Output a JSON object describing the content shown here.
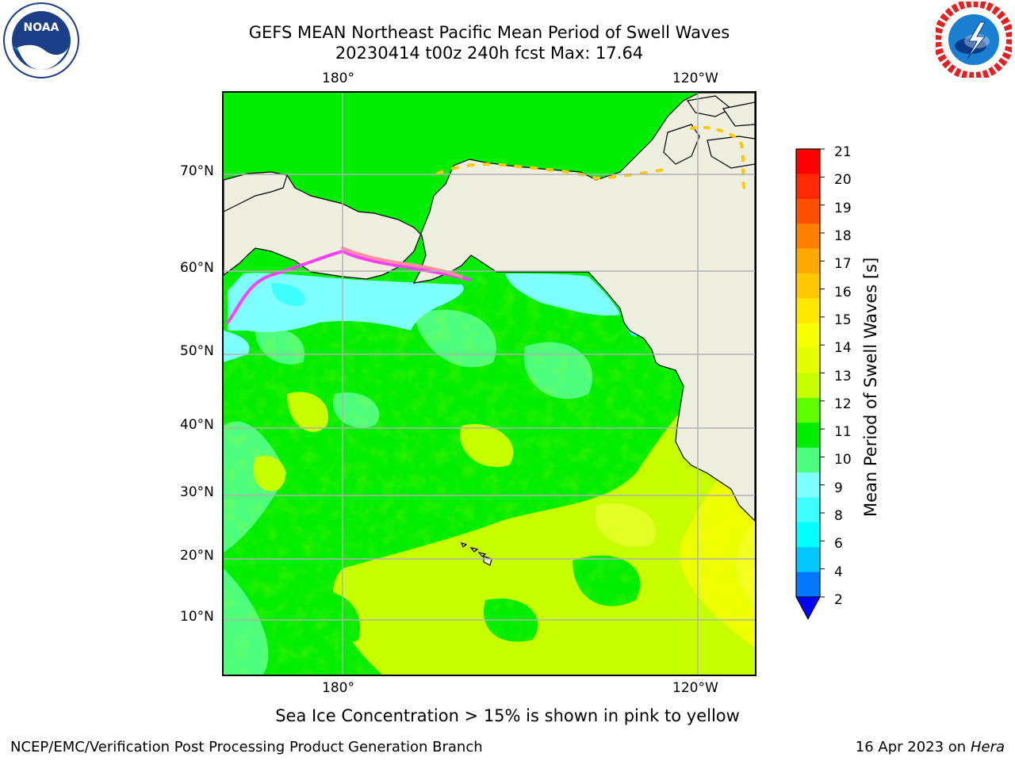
{
  "header": {
    "title_line1": "GEFS MEAN Northeast Pacific Mean Period of Swell Waves",
    "title_line2": "20230414 t00z 240h fcst   Max: 17.64"
  },
  "logos": {
    "noaa_text": "NOAA",
    "noaa_ring_text": "NATIONAL OCEANIC AND ATMOSPHERIC ADMINISTRATION · U.S. DEPARTMENT OF COMMERCE",
    "nws_ring_text": "NATIONAL WEATHER SERVICE"
  },
  "map": {
    "top_lon_labels": [
      "180°",
      "120°W"
    ],
    "bottom_lon_labels": [
      "180°",
      "120°W"
    ],
    "lat_labels": [
      "70°N",
      "60°N",
      "50°N",
      "40°N",
      "30°N",
      "20°N",
      "10°N"
    ],
    "land_color": "#efefdf",
    "grid_color": "#b0b0b0",
    "field_description_colors": {
      "cyan": "#7fffff",
      "light_green": "#4cff7f",
      "green": "#00f000",
      "yellow_green": "#bfff00",
      "yellow": "#f0ff00"
    }
  },
  "colorbar": {
    "title": "Mean Period of Swell Waves [s]",
    "ticks": [
      "21",
      "20",
      "19",
      "18",
      "17",
      "16",
      "15",
      "14",
      "13",
      "12",
      "11",
      "10",
      "9",
      "8",
      "6",
      "4",
      "2"
    ],
    "colors_top_to_bottom": [
      "#ff0000",
      "#ff2800",
      "#ff5000",
      "#ff8000",
      "#ffa800",
      "#ffc800",
      "#ffe800",
      "#f5ff00",
      "#e6ff00",
      "#c8ff00",
      "#60ff00",
      "#00ee00",
      "#4cff7f",
      "#7fffff",
      "#40ffff",
      "#00ffff",
      "#00c8ff",
      "#0078ff"
    ],
    "extend_color": "#0000ff"
  },
  "footer": {
    "note": "Sea Ice Concentration > 15% is shown in pink to yellow",
    "left": "NCEP/EMC/Verification Post Processing Product Generation Branch",
    "right_prefix": "16 Apr 2023 on ",
    "right_machine": "Hera"
  }
}
